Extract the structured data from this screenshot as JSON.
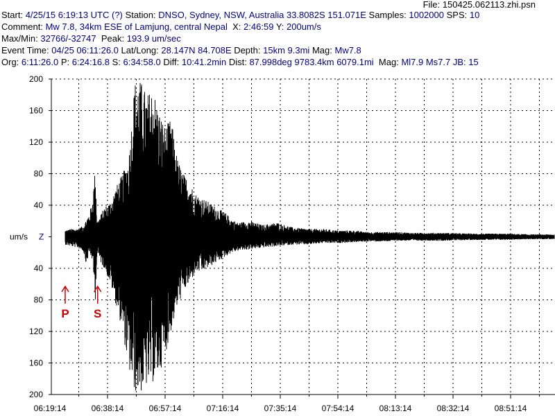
{
  "header": {
    "file_label": "File:",
    "file_name": "150425.062113.zhi.psn",
    "start_label": "Start:",
    "start_value": "4/25/15  6:19:13 UTC (?)",
    "station_label": "Station:",
    "station_value": "DNSO, Sydney, NSW, Australia 33.8082S 151.071E",
    "samples_label": "Samples:",
    "samples_value": "1002000",
    "sps_label": "SPS:",
    "sps_value": "10",
    "comment_label": "Comment:",
    "comment_value": "Mw 7.8, 34km ESE of Lamjung, central Nepal",
    "x_label": "X:",
    "x_value": "2:46:59",
    "y_label": "Y:",
    "y_value": "200um/s",
    "maxmin_label": "Max/Min:",
    "maxmin_value": "32766/-32747",
    "peak_label": "Peak:",
    "peak_value": "193.9 um/sec",
    "event_label": "Event Time:",
    "event_value": "04/25 06:11:26.0",
    "latlong_label": "Lat/Long:",
    "latlong_value": "28.147N 84.708E",
    "depth_label": "Depth:",
    "depth_value": "15km 9.3mi",
    "mag_label": "Mag:",
    "mag_value": "Mw7.8",
    "org_label": "Org:",
    "org_value": "6:11:26.0",
    "p_label": "P:",
    "p_value": "6:24:16.8",
    "s_label": "S:",
    "s_value": "6:34:58.0",
    "diff_label": "Diff:",
    "diff_value": "10:41.2min",
    "dist_label": "Dist:",
    "dist_value": "87.998deg 9783.4km 6079.1mi",
    "mag2_label": "Mag:",
    "mag2_value": "Ml7.9 Ms7.7 JB: 15"
  },
  "colors": {
    "header_value": "#000080",
    "trace": "#000000",
    "grid": "#000000",
    "phase_marker": "#cc0000"
  },
  "chart_data": {
    "type": "line",
    "title": "",
    "ylabel": "um/s",
    "channel": "Z",
    "ylim": [
      -200,
      200
    ],
    "y_ticks": [
      200,
      160,
      120,
      80,
      40,
      0,
      -40,
      -80,
      -120,
      -160,
      -200
    ],
    "y_tick_labels": [
      "200",
      "160",
      "120",
      "80",
      "40",
      "",
      "40",
      "80",
      "120",
      "160",
      "200"
    ],
    "x_start": "06:19:14",
    "x_tick_labels": [
      "06:19:14",
      "06:38:14",
      "06:57:14",
      "07:16:14",
      "07:35:14",
      "07:54:14",
      "08:13:14",
      "08:32:14",
      "08:51:14"
    ],
    "x_minor_per_major": 2,
    "grid": true,
    "grid_style": "dotted",
    "phase_markers": [
      {
        "label": "P",
        "time": "06:24:16"
      },
      {
        "label": "S",
        "time": "06:34:58"
      }
    ],
    "series": [
      {
        "x_minutes": [
          0,
          1,
          2,
          3,
          5,
          7,
          9,
          11,
          12,
          13,
          14,
          15,
          15.5,
          16,
          17,
          18,
          20,
          22,
          24,
          26,
          28,
          30,
          32,
          34,
          36,
          38,
          40,
          42,
          44,
          46,
          48,
          50,
          52,
          54,
          56,
          58,
          60,
          62,
          66,
          70,
          75,
          80,
          85,
          90,
          95,
          100,
          105,
          110,
          115,
          120,
          130,
          140,
          150,
          160
        ],
        "envelope_upper": [
          2,
          3,
          5,
          6,
          8,
          10,
          10,
          14,
          22,
          30,
          45,
          90,
          20,
          22,
          30,
          38,
          45,
          65,
          80,
          100,
          198,
          198,
          180,
          190,
          160,
          140,
          150,
          100,
          80,
          70,
          55,
          50,
          45,
          40,
          35,
          30,
          22,
          18,
          20,
          15,
          18,
          12,
          10,
          10,
          8,
          8,
          6,
          6,
          6,
          5,
          5,
          4,
          4,
          3
        ],
        "envelope_lower": [
          -2,
          -25,
          -6,
          -8,
          -10,
          -12,
          -14,
          -18,
          -35,
          -20,
          -30,
          -80,
          -22,
          -25,
          -35,
          -40,
          -60,
          -90,
          -120,
          -170,
          -198,
          -198,
          -190,
          -185,
          -175,
          -150,
          -120,
          -90,
          -70,
          -60,
          -45,
          -45,
          -40,
          -35,
          -30,
          -25,
          -20,
          -18,
          -16,
          -14,
          -12,
          -10,
          -10,
          -8,
          -8,
          -7,
          -6,
          -6,
          -5,
          -5,
          -5,
          -4,
          -4,
          -3
        ]
      }
    ]
  }
}
